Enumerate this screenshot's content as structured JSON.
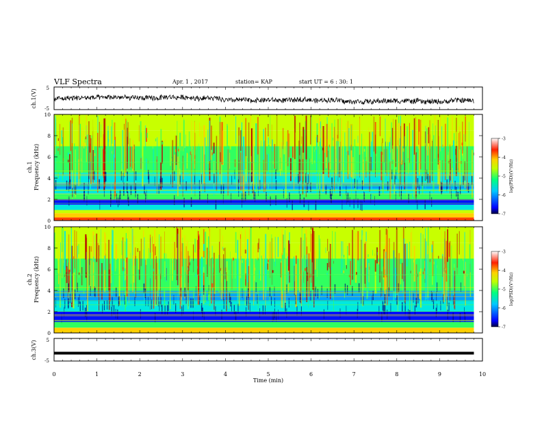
{
  "header": {
    "title": "VLF Spectra",
    "date": "Apr. 1 , 2017",
    "station": "station= KAP",
    "start": "start UT = 6 : 30: 1"
  },
  "colors": {
    "palette": [
      "#00007a",
      "#0010ff",
      "#00a0ff",
      "#00e8e0",
      "#30ff60",
      "#c8ff00",
      "#ffd000",
      "#ff4000",
      "#b80000"
    ],
    "axis": "#000000",
    "background": "#ffffff"
  },
  "chart_data": [
    {
      "type": "line",
      "panel": "ch1-waveform",
      "ylabel": "ch.1(V)",
      "ylim": [
        -5,
        5
      ],
      "yticks": [
        "5",
        "-5"
      ],
      "xlim": [
        0,
        10
      ],
      "series": [
        {
          "values": "noisy waveform fluctuating roughly between -2 and +1 V over 0–9.8 min"
        }
      ]
    },
    {
      "type": "heatmap",
      "panel": "ch1-spectrogram",
      "ylabel": "ch.1\nFrequency (kHz)",
      "ylabel_top": "ch.1",
      "ylabel_bottom": "Frequency (kHz)",
      "ylim": [
        0,
        10
      ],
      "yticks": [
        "0",
        "2",
        "4",
        "6",
        "8",
        "10"
      ],
      "xlim": [
        0,
        10
      ],
      "data_end_min": 9.8,
      "colorbar": {
        "label": "log(PSD)(V²/Hz)",
        "ticks": [
          "-3",
          "-4",
          "-5",
          "-6",
          "-7"
        ],
        "range": [
          -7,
          -3
        ]
      },
      "bands": [
        {
          "from": 0,
          "to": 0.3,
          "level": -3.6
        },
        {
          "from": 0.3,
          "to": 0.7,
          "level": -3.9
        },
        {
          "from": 0.7,
          "to": 1.0,
          "level": -4.6
        },
        {
          "from": 1.0,
          "to": 1.5,
          "level": -5.5
        },
        {
          "from": 1.5,
          "to": 2.0,
          "level": -6.2
        },
        {
          "from": 2.0,
          "to": 2.5,
          "level": -5.1
        },
        {
          "from": 2.5,
          "to": 3.0,
          "level": -5.5
        },
        {
          "from": 3.0,
          "to": 3.5,
          "level": -5.9
        },
        {
          "from": 3.5,
          "to": 4.5,
          "level": -5.4
        },
        {
          "from": 4.5,
          "to": 5.5,
          "level": -5.1
        },
        {
          "from": 5.5,
          "to": 7.0,
          "level": -4.9
        },
        {
          "from": 7.0,
          "to": 8.5,
          "level": -4.6
        },
        {
          "from": 8.5,
          "to": 10,
          "level": -4.4
        }
      ]
    },
    {
      "type": "heatmap",
      "panel": "ch2-spectrogram",
      "ylabel": "ch.2\nFrequency (kHz)",
      "ylabel_top": "ch.2",
      "ylabel_bottom": "Frequency (kHz)",
      "ylim": [
        0,
        10
      ],
      "yticks": [
        "0",
        "2",
        "4",
        "6",
        "8",
        "10"
      ],
      "xlim": [
        0,
        10
      ],
      "data_end_min": 9.8,
      "colorbar": {
        "label": "log(PSD)(V²/Hz)",
        "ticks": [
          "-3",
          "-4",
          "-5",
          "-6",
          "-7"
        ],
        "range": [
          -7,
          -3
        ]
      },
      "bands": [
        {
          "from": 0,
          "to": 0.5,
          "level": -4.3
        },
        {
          "from": 0.5,
          "to": 1.0,
          "level": -5.2
        },
        {
          "from": 1.0,
          "to": 2.0,
          "level": -6.2
        },
        {
          "from": 2.0,
          "to": 3.0,
          "level": -5.4
        },
        {
          "from": 3.0,
          "to": 4.0,
          "level": -5.7
        },
        {
          "from": 4.0,
          "to": 5.5,
          "level": -5.1
        },
        {
          "from": 5.5,
          "to": 7.0,
          "level": -4.9
        },
        {
          "from": 7.0,
          "to": 8.5,
          "level": -4.6
        },
        {
          "from": 8.5,
          "to": 10,
          "level": -4.4
        }
      ]
    },
    {
      "type": "line",
      "panel": "ch3-waveform",
      "ylabel": "ch.3(V)",
      "ylim": [
        -5,
        5
      ],
      "yticks": [
        "5",
        "-5"
      ],
      "xlim": [
        0,
        10
      ],
      "series": [
        {
          "constant_value": -1.5,
          "values": "flat thick line at about -1.5 V"
        }
      ]
    }
  ],
  "xaxis": {
    "label": "Time (min)",
    "ticks": [
      "0",
      "1",
      "2",
      "3",
      "4",
      "5",
      "6",
      "7",
      "8",
      "9",
      "10"
    ]
  }
}
